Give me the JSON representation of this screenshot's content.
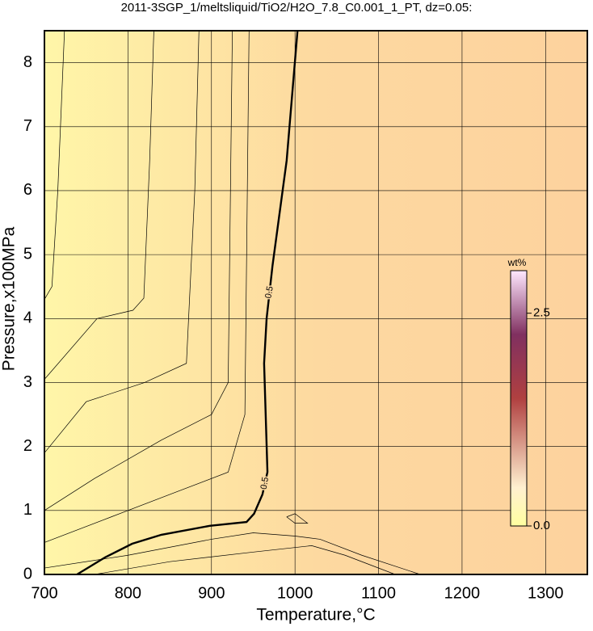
{
  "chart_data": {
    "type": "contour",
    "title": "2011-3SGP_1/meltsliquid/TiO2/H2O_7.8_C0.001_1_PT, dz=0.05:",
    "xlabel": "Temperature,°C",
    "ylabel": "Pressure,x100MPa",
    "xlim": [
      700,
      1350
    ],
    "ylim": [
      0,
      8.5
    ],
    "xticks": [
      700,
      800,
      900,
      1000,
      1100,
      1200,
      1300
    ],
    "yticks": [
      0,
      1,
      2,
      3,
      4,
      5,
      6,
      7,
      8
    ],
    "grid": true,
    "contours": [
      {
        "level": 0.5,
        "bold": true,
        "x": [
          739,
          773,
          805,
          840,
          898,
          942,
          951,
          961,
          967,
          963,
          966,
          973,
          990,
          1003
        ],
        "y": [
          0,
          0.27,
          0.48,
          0.62,
          0.76,
          0.82,
          0.95,
          1.25,
          1.6,
          3.3,
          4.0,
          4.82,
          6.47,
          8.5
        ]
      },
      {
        "x": [
          700,
          709,
          716,
          724
        ],
        "y": [
          4.3,
          4.5,
          6.0,
          8.5
        ]
      },
      {
        "x": [
          700,
          763,
          806,
          819,
          826,
          831
        ],
        "y": [
          3.05,
          4.0,
          4.13,
          4.32,
          6.47,
          8.5
        ]
      },
      {
        "x": [
          700,
          750,
          820,
          870,
          880,
          885
        ],
        "y": [
          1.9,
          2.7,
          3.0,
          3.3,
          6.0,
          8.5
        ]
      },
      {
        "x": [
          700,
          760,
          840,
          900,
          920,
          925
        ],
        "y": [
          1.0,
          1.5,
          2.1,
          2.5,
          3.0,
          8.5
        ]
      },
      {
        "x": [
          700,
          780,
          860,
          920,
          940,
          945
        ],
        "y": [
          0.5,
          0.9,
          1.3,
          1.6,
          2.5,
          8.5
        ]
      },
      {
        "x": [
          700,
          800,
          900,
          950,
          1000,
          1030,
          1080,
          1150
        ],
        "y": [
          0.1,
          0.3,
          0.55,
          0.65,
          0.6,
          0.55,
          0.3,
          0
        ]
      },
      {
        "x": [
          760,
          850,
          950,
          1020,
          1060,
          1120
        ],
        "y": [
          0,
          0.2,
          0.35,
          0.45,
          0.3,
          0
        ]
      },
      {
        "x": [
          990,
          1000,
          1015,
          1000,
          990
        ],
        "y": [
          0.9,
          0.95,
          0.8,
          0.8,
          0.9
        ]
      }
    ],
    "colorbar": {
      "label": "wt%",
      "lim": [
        0,
        3.0
      ],
      "ticks": [
        {
          "value": 0,
          "label": "0.0"
        },
        2.5
      ]
    }
  }
}
